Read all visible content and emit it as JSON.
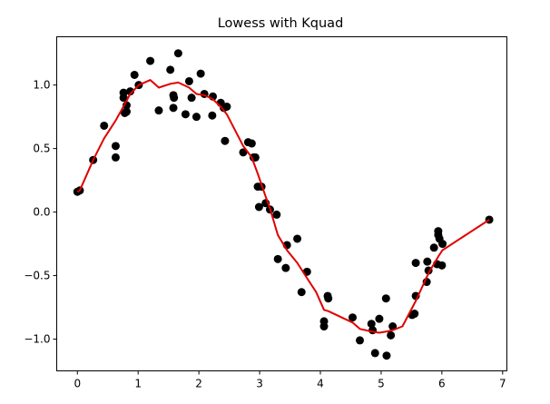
{
  "chart_data": {
    "type": "scatter",
    "title": "Lowess with Kquad",
    "xlabel": "",
    "ylabel": "",
    "xlim": [
      -0.34,
      7.07
    ],
    "ylim": [
      -1.25,
      1.38
    ],
    "xticks": [
      0,
      1,
      2,
      3,
      4,
      5,
      6,
      7
    ],
    "xtick_labels": [
      "0",
      "1",
      "2",
      "3",
      "4",
      "5",
      "6",
      "7"
    ],
    "yticks": [
      -1.0,
      -0.5,
      0.0,
      0.5,
      1.0
    ],
    "ytick_labels": [
      "−1.0",
      "−0.5",
      "0.0",
      "0.5",
      "1.0"
    ],
    "grid": false,
    "legend": "none",
    "series": [
      {
        "kind": "scatter",
        "color": "#000000",
        "points": [
          [
            0.0,
            0.16
          ],
          [
            0.04,
            0.17
          ],
          [
            0.26,
            0.41
          ],
          [
            0.44,
            0.68
          ],
          [
            0.63,
            0.52
          ],
          [
            0.63,
            0.43
          ],
          [
            0.76,
            0.94
          ],
          [
            0.76,
            0.9
          ],
          [
            0.78,
            0.78
          ],
          [
            0.81,
            0.79
          ],
          [
            0.81,
            0.84
          ],
          [
            0.87,
            0.95
          ],
          [
            0.94,
            1.08
          ],
          [
            1.01,
            1.0
          ],
          [
            1.2,
            1.19
          ],
          [
            1.34,
            0.8
          ],
          [
            1.53,
            1.12
          ],
          [
            1.58,
            0.92
          ],
          [
            1.59,
            0.9
          ],
          [
            1.58,
            0.82
          ],
          [
            1.66,
            1.25
          ],
          [
            1.78,
            0.77
          ],
          [
            1.84,
            1.03
          ],
          [
            1.88,
            0.9
          ],
          [
            1.96,
            0.75
          ],
          [
            2.03,
            1.09
          ],
          [
            2.09,
            0.93
          ],
          [
            2.22,
            0.76
          ],
          [
            2.23,
            0.91
          ],
          [
            2.36,
            0.86
          ],
          [
            2.41,
            0.82
          ],
          [
            2.43,
            0.56
          ],
          [
            2.46,
            0.83
          ],
          [
            2.73,
            0.47
          ],
          [
            2.81,
            0.55
          ],
          [
            2.87,
            0.54
          ],
          [
            2.9,
            0.43
          ],
          [
            2.93,
            0.43
          ],
          [
            2.97,
            0.2
          ],
          [
            2.99,
            0.04
          ],
          [
            3.03,
            0.2
          ],
          [
            3.1,
            0.07
          ],
          [
            3.17,
            0.02
          ],
          [
            3.28,
            -0.02
          ],
          [
            3.3,
            -0.37
          ],
          [
            3.43,
            -0.44
          ],
          [
            3.45,
            -0.26
          ],
          [
            3.62,
            -0.21
          ],
          [
            3.69,
            -0.63
          ],
          [
            3.78,
            -0.47
          ],
          [
            4.06,
            -0.86
          ],
          [
            4.06,
            -0.9
          ],
          [
            4.12,
            -0.66
          ],
          [
            4.13,
            -0.68
          ],
          [
            4.53,
            -0.83
          ],
          [
            4.65,
            -1.01
          ],
          [
            4.84,
            -0.88
          ],
          [
            4.86,
            -0.93
          ],
          [
            4.9,
            -1.11
          ],
          [
            4.97,
            -0.84
          ],
          [
            5.09,
            -1.13
          ],
          [
            5.08,
            -0.68
          ],
          [
            5.16,
            -0.97
          ],
          [
            5.19,
            -0.9
          ],
          [
            5.51,
            -0.81
          ],
          [
            5.55,
            -0.8
          ],
          [
            5.57,
            -0.4
          ],
          [
            5.57,
            -0.66
          ],
          [
            5.75,
            -0.55
          ],
          [
            5.76,
            -0.39
          ],
          [
            5.78,
            -0.46
          ],
          [
            5.87,
            -0.28
          ],
          [
            5.94,
            -0.15
          ],
          [
            5.94,
            -0.18
          ],
          [
            5.92,
            -0.41
          ],
          [
            5.96,
            -0.21
          ],
          [
            6.0,
            -0.42
          ],
          [
            6.01,
            -0.25
          ],
          [
            6.78,
            -0.06
          ]
        ]
      },
      {
        "kind": "line",
        "color": "#e00000",
        "points": [
          [
            0.0,
            0.16
          ],
          [
            0.04,
            0.17
          ],
          [
            0.26,
            0.41
          ],
          [
            0.44,
            0.58
          ],
          [
            0.63,
            0.72
          ],
          [
            0.78,
            0.85
          ],
          [
            0.87,
            0.93
          ],
          [
            1.01,
            1.0
          ],
          [
            1.2,
            1.04
          ],
          [
            1.34,
            0.98
          ],
          [
            1.53,
            1.01
          ],
          [
            1.66,
            1.02
          ],
          [
            1.84,
            0.98
          ],
          [
            1.96,
            0.93
          ],
          [
            2.09,
            0.92
          ],
          [
            2.23,
            0.89
          ],
          [
            2.36,
            0.83
          ],
          [
            2.46,
            0.77
          ],
          [
            2.73,
            0.52
          ],
          [
            2.87,
            0.43
          ],
          [
            2.97,
            0.3
          ],
          [
            3.1,
            0.12
          ],
          [
            3.17,
            0.03
          ],
          [
            3.3,
            -0.18
          ],
          [
            3.45,
            -0.3
          ],
          [
            3.62,
            -0.4
          ],
          [
            3.78,
            -0.52
          ],
          [
            3.93,
            -0.63
          ],
          [
            4.06,
            -0.77
          ],
          [
            4.13,
            -0.78
          ],
          [
            4.53,
            -0.87
          ],
          [
            4.65,
            -0.92
          ],
          [
            4.84,
            -0.94
          ],
          [
            4.97,
            -0.95
          ],
          [
            5.09,
            -0.94
          ],
          [
            5.19,
            -0.93
          ],
          [
            5.35,
            -0.9
          ],
          [
            5.57,
            -0.7
          ],
          [
            5.78,
            -0.48
          ],
          [
            5.94,
            -0.35
          ],
          [
            6.01,
            -0.3
          ],
          [
            6.78,
            -0.06
          ]
        ]
      }
    ]
  }
}
